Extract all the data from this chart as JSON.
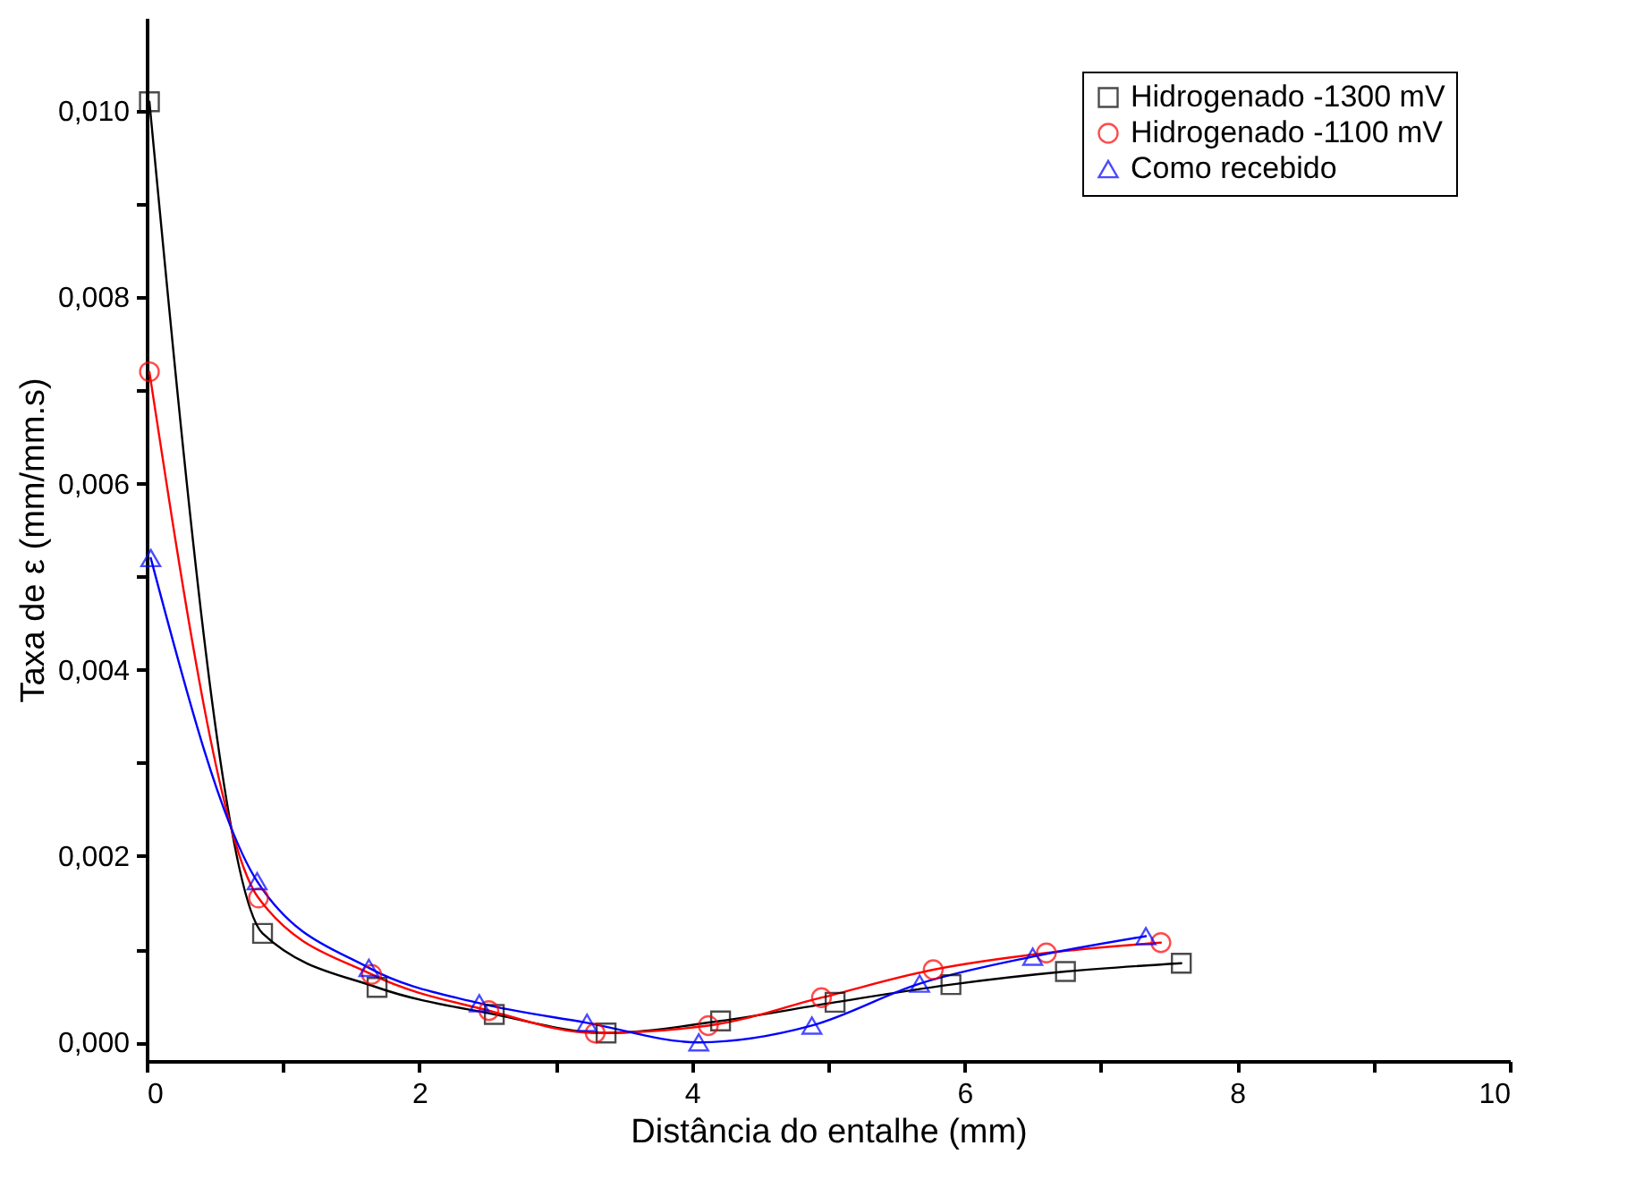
{
  "chart_data": {
    "type": "line",
    "xlabel": "Distância do entalhe (mm)",
    "ylabel": "Taxa de ε (mm/mm.s)",
    "xlim": [
      0,
      10
    ],
    "ylim": [
      -0.0002,
      0.011
    ],
    "xticks": [
      0,
      {
        "value": 1,
        "label": null
      },
      2,
      {
        "value": 3,
        "label": null
      },
      4,
      {
        "value": 5,
        "label": null
      },
      6,
      {
        "value": 7,
        "label": null
      },
      8,
      {
        "value": 9,
        "label": null
      },
      10
    ],
    "yticks": [
      {
        "value": 0,
        "label": "0,000"
      },
      {
        "value": 0.001,
        "label": null
      },
      {
        "value": 0.002,
        "label": "0,002"
      },
      {
        "value": 0.003,
        "label": null
      },
      {
        "value": 0.004,
        "label": "0,004"
      },
      {
        "value": 0.005,
        "label": null
      },
      {
        "value": 0.006,
        "label": "0,006"
      },
      {
        "value": 0.007,
        "label": null
      },
      {
        "value": 0.008,
        "label": "0,008"
      },
      {
        "value": 0.009,
        "label": null
      },
      {
        "value": 0.01,
        "label": "0,010"
      }
    ],
    "grid": false,
    "legend": "top right",
    "line_style": "solid",
    "series": [
      {
        "name": "Hidrogenado -1300 mV",
        "color": "#000000",
        "marker": "square",
        "x": [
          0.02,
          0.85,
          1.69,
          2.55,
          3.37,
          4.21,
          5.05,
          5.9,
          6.74,
          7.59
        ],
        "values": [
          0.0101,
          0.00117,
          0.00059,
          0.0003,
          0.0001,
          0.00023,
          0.00043,
          0.00062,
          0.00076,
          0.00085
        ]
      },
      {
        "name": "Hidrogenado -1100 mV",
        "color": "#ff0000",
        "marker": "circle",
        "x": [
          0.02,
          0.82,
          1.65,
          2.51,
          3.29,
          4.12,
          4.95,
          5.77,
          6.6,
          7.44
        ],
        "values": [
          0.0072,
          0.00155,
          0.00073,
          0.00034,
          0.0001,
          0.00018,
          0.00048,
          0.00078,
          0.00096,
          0.00107
        ]
      },
      {
        "name": "Como recebido",
        "color": "#0000ff",
        "marker": "triangle",
        "x": [
          0.03,
          0.81,
          1.63,
          2.44,
          3.23,
          4.05,
          4.88,
          5.67,
          6.5,
          7.33
        ],
        "values": [
          0.0052,
          0.00173,
          0.0008,
          0.00042,
          0.00021,
          0.0,
          0.00018,
          0.00063,
          0.00092,
          0.00114
        ]
      }
    ]
  }
}
